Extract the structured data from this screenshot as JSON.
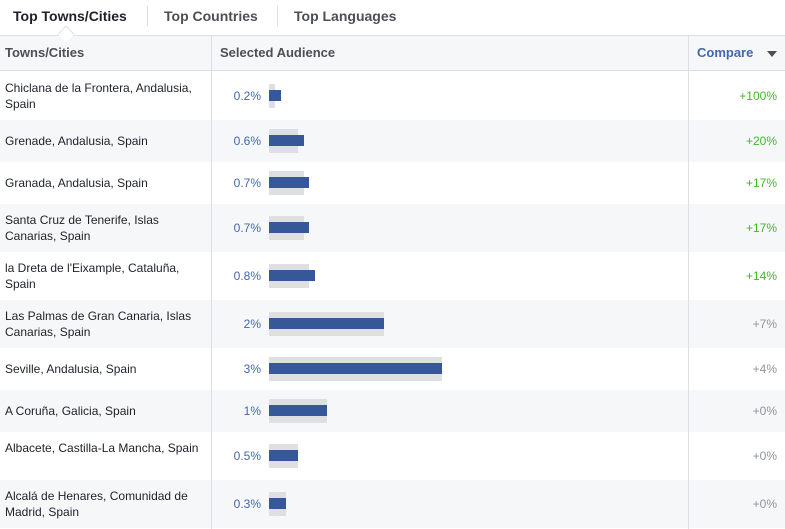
{
  "tabs": [
    {
      "label": "Top Towns/Cities",
      "active": true
    },
    {
      "label": "Top Countries",
      "active": false
    },
    {
      "label": "Top Languages",
      "active": false
    }
  ],
  "columns": {
    "city": "Towns/Cities",
    "audience": "Selected Audience",
    "compare": "Compare"
  },
  "rows": [
    {
      "city": "Chiclana de la Frontera, Andalusia, Spain",
      "pct": "0.2%",
      "value": 0.2,
      "compare_value": 0.1,
      "change": "+100%",
      "change_type": "positive"
    },
    {
      "city": "Grenade, Andalusia, Spain",
      "pct": "0.6%",
      "value": 0.6,
      "compare_value": 0.5,
      "change": "+20%",
      "change_type": "positive"
    },
    {
      "city": "Granada, Andalusia, Spain",
      "pct": "0.7%",
      "value": 0.7,
      "compare_value": 0.6,
      "change": "+17%",
      "change_type": "positive"
    },
    {
      "city": "Santa Cruz de Tenerife, Islas Canarias, Spain",
      "pct": "0.7%",
      "value": 0.7,
      "compare_value": 0.6,
      "change": "+17%",
      "change_type": "positive"
    },
    {
      "city": "la Dreta de l'Eixample, Cataluña, Spain",
      "pct": "0.8%",
      "value": 0.8,
      "compare_value": 0.7,
      "change": "+14%",
      "change_type": "positive"
    },
    {
      "city": "Las Palmas de Gran Canaria, Islas Canarias, Spain",
      "pct": "2%",
      "value": 2.0,
      "compare_value": 2.0,
      "change": "+7%",
      "change_type": "neutral"
    },
    {
      "city": "Seville, Andalusia, Spain",
      "pct": "3%",
      "value": 3.0,
      "compare_value": 3.0,
      "change": "+4%",
      "change_type": "neutral"
    },
    {
      "city": "A Coruña, Galicia, Spain",
      "pct": "1%",
      "value": 1.0,
      "compare_value": 1.0,
      "change": "+0%",
      "change_type": "neutral"
    },
    {
      "city": "Albacete, Castilla-La Mancha, Spain",
      "pct": "0.5%",
      "value": 0.5,
      "compare_value": 0.5,
      "change": "+0%",
      "change_type": "neutral"
    },
    {
      "city": "Alcalá de Henares, Comunidad de Madrid, Spain",
      "pct": "0.3%",
      "value": 0.3,
      "compare_value": 0.3,
      "change": "+0%",
      "change_type": "neutral"
    }
  ],
  "colors": {
    "bar": "#365899",
    "bar_background": "#dddfe2",
    "positive": "#42b72a",
    "neutral": "#90949c",
    "link": "#4267b2"
  }
}
